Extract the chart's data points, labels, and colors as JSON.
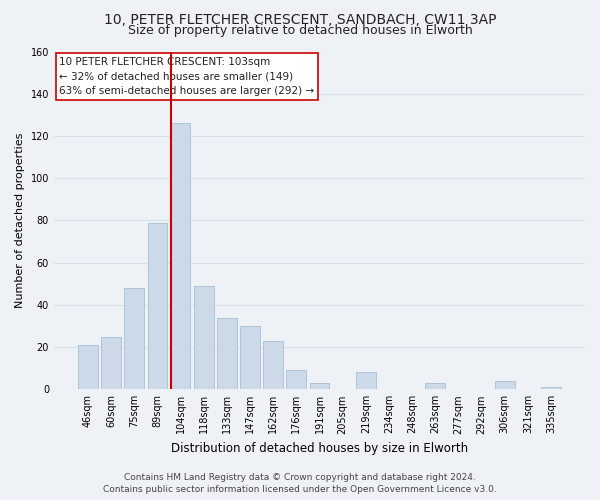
{
  "title": "10, PETER FLETCHER CRESCENT, SANDBACH, CW11 3AP",
  "subtitle": "Size of property relative to detached houses in Elworth",
  "xlabel": "Distribution of detached houses by size in Elworth",
  "ylabel": "Number of detached properties",
  "bar_labels": [
    "46sqm",
    "60sqm",
    "75sqm",
    "89sqm",
    "104sqm",
    "118sqm",
    "133sqm",
    "147sqm",
    "162sqm",
    "176sqm",
    "191sqm",
    "205sqm",
    "219sqm",
    "234sqm",
    "248sqm",
    "263sqm",
    "277sqm",
    "292sqm",
    "306sqm",
    "321sqm",
    "335sqm"
  ],
  "bar_values": [
    21,
    25,
    48,
    79,
    126,
    49,
    34,
    30,
    23,
    9,
    3,
    0,
    8,
    0,
    0,
    3,
    0,
    0,
    4,
    0,
    1
  ],
  "bar_color": "#ccd9e8",
  "bar_edge_color": "#a8bfd0",
  "vline_x_index": 4,
  "vline_color": "#cc0000",
  "ylim": [
    0,
    160
  ],
  "yticks": [
    0,
    20,
    40,
    60,
    80,
    100,
    120,
    140,
    160
  ],
  "annotation_title": "10 PETER FLETCHER CRESCENT: 103sqm",
  "annotation_line1": "← 32% of detached houses are smaller (149)",
  "annotation_line2": "63% of semi-detached houses are larger (292) →",
  "annotation_box_color": "#ffffff",
  "annotation_box_edge": "#cc0000",
  "footer_line1": "Contains HM Land Registry data © Crown copyright and database right 2024.",
  "footer_line2": "Contains public sector information licensed under the Open Government Licence v3.0.",
  "bg_color": "#eef2f7",
  "grid_color": "#d8e0ea",
  "title_fontsize": 10,
  "subtitle_fontsize": 9,
  "xlabel_fontsize": 8.5,
  "ylabel_fontsize": 8,
  "tick_fontsize": 7,
  "annotation_fontsize": 7.5,
  "footer_fontsize": 6.5
}
